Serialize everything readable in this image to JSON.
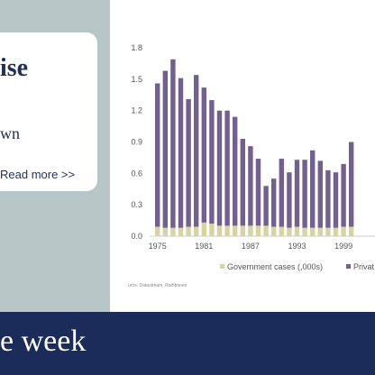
{
  "card": {
    "title": "ise",
    "subtitle": "wn",
    "read_more": "Read more >>"
  },
  "footer": {
    "text": "e week"
  },
  "source_note": "urce: Datastream, Rathbones",
  "colors": {
    "private_bar": "#74608e",
    "government_bar": "#d9d2a2",
    "footer_bg": "#1b2b5a",
    "panel_bg": "#b7c7c7"
  },
  "chart_data": {
    "type": "bar",
    "stacked": true,
    "x": [
      1975,
      1976,
      1977,
      1978,
      1979,
      1980,
      1981,
      1982,
      1983,
      1984,
      1985,
      1986,
      1987,
      1988,
      1989,
      1990,
      1991,
      1992,
      1993,
      1994,
      1995,
      1996,
      1997,
      1998,
      1999,
      2000
    ],
    "x_tick_labels": [
      "1975",
      "1981",
      "1987",
      "1993",
      "1999"
    ],
    "y_tick_labels": [
      "0.0",
      "0.3",
      "0.6",
      "0.9",
      "1.2",
      "1.5",
      "1.8"
    ],
    "ylim": [
      0,
      1.8
    ],
    "grid": false,
    "legend_position": "bottom",
    "series": [
      {
        "name": "Government cases (,000s)",
        "values": [
          0.09,
          0.08,
          0.08,
          0.08,
          0.09,
          0.09,
          0.13,
          0.12,
          0.1,
          0.1,
          0.1,
          0.1,
          0.1,
          0.1,
          0.1,
          0.09,
          0.09,
          0.08,
          0.09,
          0.08,
          0.08,
          0.08,
          0.08,
          0.08,
          0.09,
          0.09
        ]
      },
      {
        "name": "Privat",
        "values": [
          1.37,
          1.5,
          1.61,
          1.43,
          1.22,
          1.45,
          1.29,
          1.18,
          1.1,
          1.1,
          1.04,
          0.83,
          0.76,
          0.64,
          0.38,
          0.46,
          0.65,
          0.53,
          0.64,
          0.65,
          0.74,
          0.64,
          0.55,
          0.53,
          0.6,
          0.81
        ]
      }
    ]
  }
}
